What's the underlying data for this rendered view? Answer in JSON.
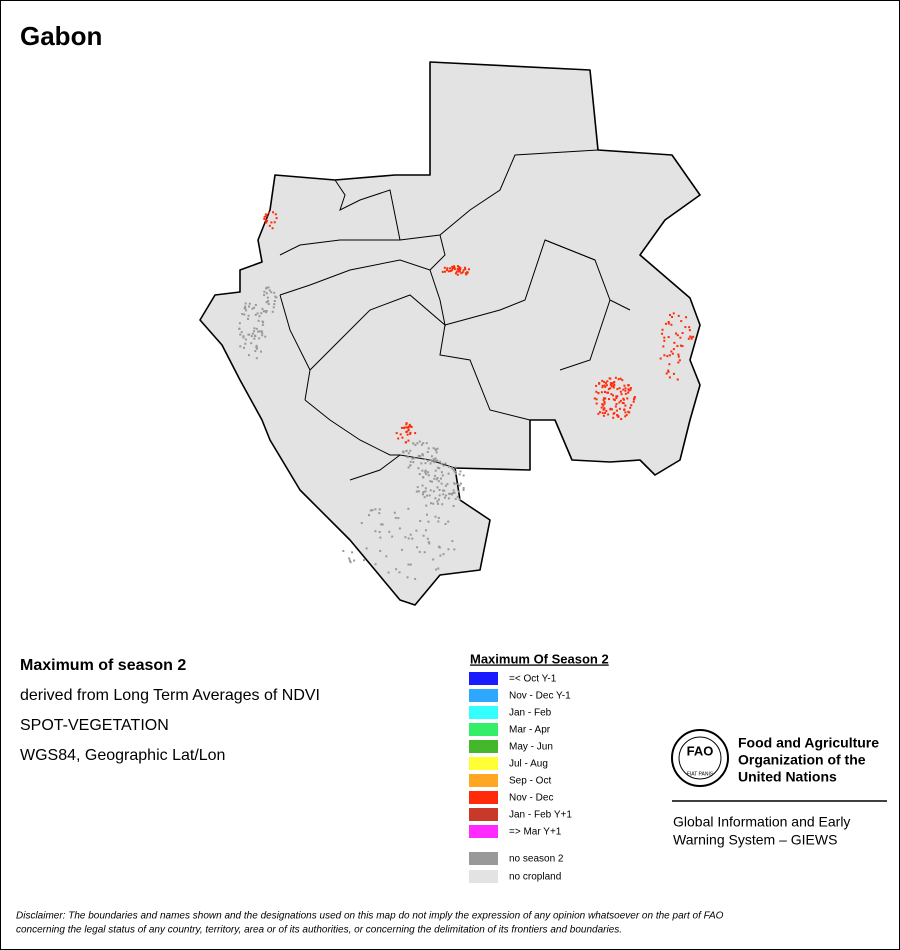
{
  "header": {
    "title": "Gabon"
  },
  "info": {
    "heading": "Maximum of season 2",
    "lines": [
      "derived from Long Term Averages of NDVI",
      "SPOT-VEGETATION",
      "WGS84, Geographic Lat/Lon"
    ]
  },
  "legend": {
    "title": "Maximum Of Season 2",
    "items": [
      {
        "label": "=< Oct Y-1",
        "color": "#1a1aff"
      },
      {
        "label": "Nov - Dec Y-1",
        "color": "#2ea8ff"
      },
      {
        "label": "Jan - Feb",
        "color": "#33ffff"
      },
      {
        "label": "Mar - Apr",
        "color": "#33ee66"
      },
      {
        "label": "May - Jun",
        "color": "#44b82a"
      },
      {
        "label": "Jul - Aug",
        "color": "#ffff33"
      },
      {
        "label": "Sep - Oct",
        "color": "#ffa722"
      },
      {
        "label": "Nov - Dec",
        "color": "#ff2a0a"
      },
      {
        "label": "Jan - Feb Y+1",
        "color": "#c8392a"
      },
      {
        "label": "=> Mar Y+1",
        "color": "#ff2aff"
      }
    ],
    "extra": [
      {
        "label": "no season 2",
        "color": "#999999"
      },
      {
        "label": "no cropland",
        "color": "#e3e3e3"
      }
    ]
  },
  "logo": {
    "acronym": "FAO",
    "motto": "FIAT PANIS",
    "org_lines": [
      "Food and Agriculture",
      "Organization of the",
      "United Nations"
    ],
    "system_lines": [
      "Global Information and Early",
      "Warning System – GIEWS"
    ]
  },
  "disclaimer": [
    "Disclaimer: The boundaries and names shown and the designations used on this map do not imply the expression of any opinion whatsoever on the part of FAO",
    "concerning the legal status of any country, territory, area or of its authorities, or concerning the delimitation of its frontiers and boundaries."
  ]
}
